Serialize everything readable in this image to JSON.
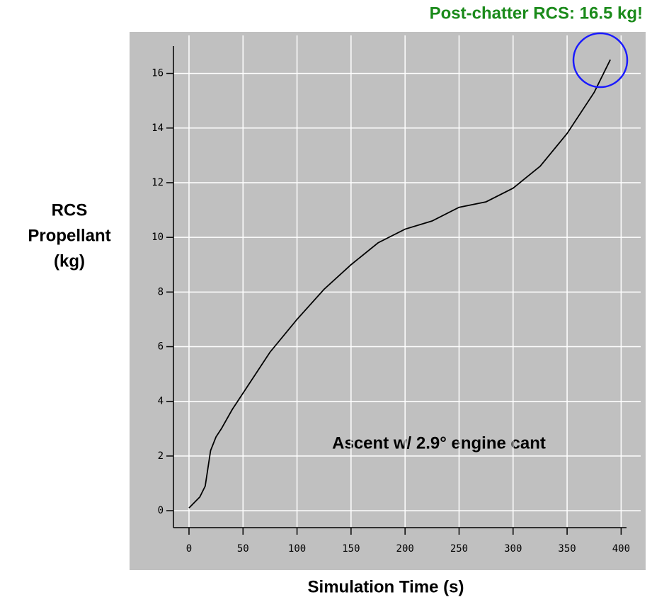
{
  "chart_data": {
    "type": "line",
    "annotations": [
      "Post-chatter RCS:  16.5 kg!",
      "Ascent w/ 2.9° engine cant"
    ],
    "xlabel": "Simulation Time (s)",
    "ylabel": [
      "RCS",
      "Propellant",
      "(kg)"
    ],
    "x": [
      0,
      10,
      15,
      20,
      25,
      30,
      40,
      50,
      75,
      100,
      125,
      150,
      175,
      200,
      225,
      250,
      275,
      300,
      325,
      350,
      375,
      390
    ],
    "series": [
      {
        "color": "#000000",
        "values": [
          0.1,
          0.5,
          0.9,
          2.2,
          2.7,
          3.0,
          3.7,
          4.3,
          5.8,
          7.0,
          8.1,
          9.0,
          9.8,
          10.3,
          10.6,
          11.1,
          11.3,
          11.8,
          12.6,
          13.8,
          15.3,
          16.5
        ]
      }
    ],
    "xlim": [
      -14.4,
      405
    ],
    "ylim": [
      -0.62,
      17.0
    ],
    "xticks": [
      0,
      50,
      100,
      150,
      200,
      250,
      300,
      350,
      400
    ],
    "yticks": [
      0,
      2,
      4,
      6,
      8,
      10,
      12,
      14,
      16
    ],
    "grid": true
  }
}
